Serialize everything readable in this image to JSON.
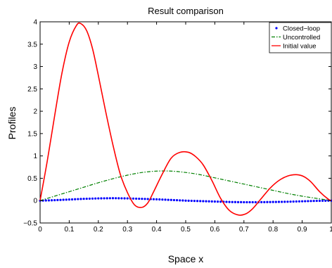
{
  "chart_data": {
    "type": "line",
    "title": "Result comparison",
    "xlabel": "Space x",
    "ylabel": "Profiles",
    "xlim": [
      0,
      1
    ],
    "ylim": [
      -0.5,
      4
    ],
    "xticks": [
      0,
      0.1,
      0.2,
      0.3,
      0.4,
      0.5,
      0.6,
      0.7,
      0.8,
      0.9,
      1
    ],
    "xtick_labels": [
      "0",
      "0.1",
      "0.2",
      "0.3",
      "0.4",
      "0.5",
      "0.6",
      "0.7",
      "0.8",
      "0.9",
      "1"
    ],
    "yticks": [
      -0.5,
      0,
      0.5,
      1,
      1.5,
      2,
      2.5,
      3,
      3.5,
      4
    ],
    "ytick_labels": [
      "−0.5",
      "0",
      "0.5",
      "1",
      "1.5",
      "2",
      "2.5",
      "3",
      "3.5",
      "4"
    ],
    "grid": false,
    "legend_position": "top-right",
    "series": [
      {
        "name": "Closed−loop",
        "style": "dotted",
        "color": "#0000ff",
        "x": [
          0,
          0.05,
          0.1,
          0.15,
          0.2,
          0.25,
          0.3,
          0.35,
          0.4,
          0.45,
          0.5,
          0.55,
          0.6,
          0.65,
          0.7,
          0.75,
          0.8,
          0.85,
          0.9,
          0.95,
          1
        ],
        "y": [
          0.0,
          0.01,
          0.025,
          0.04,
          0.05,
          0.055,
          0.05,
          0.04,
          0.03,
          0.015,
          0.0,
          -0.01,
          -0.02,
          -0.03,
          -0.035,
          -0.035,
          -0.03,
          -0.025,
          -0.015,
          -0.005,
          0.0
        ]
      },
      {
        "name": "Uncontrolled",
        "style": "dashdot",
        "color": "#008000",
        "x": [
          0,
          0.05,
          0.1,
          0.15,
          0.2,
          0.25,
          0.3,
          0.35,
          0.4,
          0.45,
          0.5,
          0.55,
          0.6,
          0.65,
          0.7,
          0.75,
          0.8,
          0.85,
          0.9,
          0.95,
          1
        ],
        "y": [
          0.0,
          0.1,
          0.2,
          0.3,
          0.4,
          0.49,
          0.57,
          0.63,
          0.66,
          0.66,
          0.63,
          0.58,
          0.51,
          0.44,
          0.37,
          0.3,
          0.23,
          0.16,
          0.1,
          0.05,
          0.0
        ]
      },
      {
        "name": "Initial value",
        "style": "solid",
        "color": "#ff0000",
        "x": [
          0,
          0.025,
          0.05,
          0.075,
          0.1,
          0.125,
          0.14,
          0.16,
          0.18,
          0.2,
          0.225,
          0.25,
          0.275,
          0.3,
          0.325,
          0.35,
          0.37,
          0.39,
          0.42,
          0.45,
          0.48,
          0.51,
          0.535,
          0.56,
          0.59,
          0.62,
          0.65,
          0.68,
          0.705,
          0.73,
          0.76,
          0.79,
          0.82,
          0.85,
          0.88,
          0.905,
          0.93,
          0.96,
          0.99,
          1
        ],
        "y": [
          0.0,
          0.9,
          1.9,
          2.85,
          3.55,
          3.92,
          3.96,
          3.8,
          3.4,
          2.8,
          2.0,
          1.25,
          0.6,
          0.18,
          -0.1,
          -0.15,
          -0.05,
          0.2,
          0.6,
          0.95,
          1.08,
          1.08,
          0.98,
          0.8,
          0.45,
          0.05,
          -0.22,
          -0.32,
          -0.3,
          -0.18,
          0.05,
          0.28,
          0.45,
          0.55,
          0.58,
          0.54,
          0.42,
          0.2,
          0.03,
          0.0
        ]
      }
    ]
  }
}
